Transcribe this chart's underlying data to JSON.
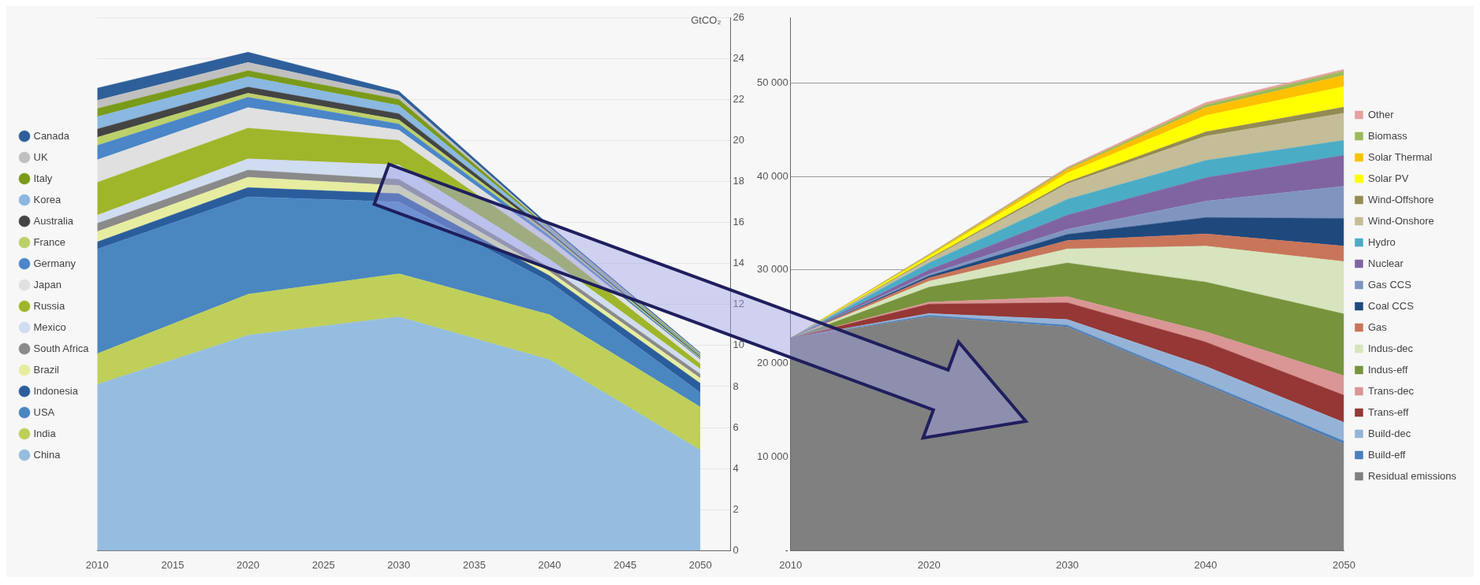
{
  "chart_data": [
    {
      "type": "area",
      "stacked": true,
      "x": [
        2010,
        2020,
        2030,
        2040,
        2050
      ],
      "xlim": [
        2010,
        2052
      ],
      "xticks": [
        2010,
        2015,
        2020,
        2025,
        2030,
        2035,
        2040,
        2045,
        2050
      ],
      "y2lim": [
        0,
        26
      ],
      "y2ticks": [
        0,
        2,
        4,
        6,
        8,
        10,
        12,
        14,
        16,
        18,
        20,
        22,
        24,
        26
      ],
      "y2label": "GtCO₂",
      "grid": "y",
      "legend": "left",
      "series": [
        {
          "name": "China",
          "color": "#95bde0",
          "axis": "y2",
          "values": [
            8.1,
            10.5,
            11.4,
            9.3,
            4.9
          ]
        },
        {
          "name": "India",
          "color": "#bfcf5a",
          "axis": "y2",
          "values": [
            1.5,
            2.0,
            2.1,
            2.2,
            2.1
          ]
        },
        {
          "name": "USA",
          "color": "#4a86c0",
          "axis": "y2",
          "values": [
            5.1,
            4.75,
            3.5,
            1.6,
            0.7
          ]
        },
        {
          "name": "Indonesia",
          "color": "#2b5d9c",
          "axis": "y2",
          "values": [
            0.35,
            0.45,
            0.4,
            0.3,
            0.45
          ]
        },
        {
          "name": "Brazil",
          "color": "#e6eda0",
          "axis": "y2",
          "values": [
            0.5,
            0.5,
            0.4,
            0.2,
            0.25
          ]
        },
        {
          "name": "South Africa",
          "color": "#8a8a8a",
          "axis": "y2",
          "values": [
            0.4,
            0.35,
            0.3,
            0.2,
            0.2
          ]
        },
        {
          "name": "Mexico",
          "color": "#d0dcf0",
          "axis": "y2",
          "values": [
            0.4,
            0.55,
            0.7,
            0.4,
            0.25
          ]
        },
        {
          "name": "Russia",
          "color": "#9fb62a",
          "axis": "y2",
          "values": [
            1.6,
            1.5,
            1.2,
            0.7,
            0.25
          ]
        },
        {
          "name": "Japan",
          "color": "#e0e0e0",
          "axis": "y2",
          "values": [
            1.1,
            1.0,
            0.5,
            0.3,
            0.2
          ]
        },
        {
          "name": "Germany",
          "color": "#4a86c8",
          "axis": "y2",
          "values": [
            0.7,
            0.5,
            0.3,
            0.15,
            0.05
          ]
        },
        {
          "name": "France",
          "color": "#bcd06a",
          "axis": "y2",
          "values": [
            0.4,
            0.2,
            0.2,
            0.1,
            0.05
          ]
        },
        {
          "name": "Australia",
          "color": "#444444",
          "axis": "y2",
          "values": [
            0.4,
            0.3,
            0.3,
            0.1,
            0.05
          ]
        },
        {
          "name": "Korea",
          "color": "#8ab8e0",
          "axis": "y2",
          "values": [
            0.6,
            0.5,
            0.4,
            0.1,
            0.05
          ]
        },
        {
          "name": "Italy",
          "color": "#7a9a1a",
          "axis": "y2",
          "values": [
            0.4,
            0.3,
            0.3,
            0.05,
            0.05
          ]
        },
        {
          "name": "UK",
          "color": "#c0c0c0",
          "axis": "y2",
          "values": [
            0.4,
            0.4,
            0.2,
            0.05,
            0.05
          ]
        },
        {
          "name": "Canada",
          "color": "#2f5f9a",
          "axis": "y2",
          "values": [
            0.6,
            0.5,
            0.2,
            0.1,
            0.05
          ]
        }
      ]
    },
    {
      "type": "area",
      "stacked": true,
      "x": [
        2010,
        2020,
        2030,
        2040,
        2050
      ],
      "xlim": [
        2010,
        2050
      ],
      "xticks": [
        2010,
        2020,
        2030,
        2040,
        2050
      ],
      "ylim": [
        0,
        57000
      ],
      "yticks": [
        {
          "value": 0,
          "label": "-"
        },
        {
          "value": 10000,
          "label": "10 000"
        },
        {
          "value": 20000,
          "label": "20 000"
        },
        {
          "value": 30000,
          "label": "30 000"
        },
        {
          "value": 40000,
          "label": "40 000"
        },
        {
          "value": 50000,
          "label": "50 000"
        }
      ],
      "grid": "y",
      "legend": "right",
      "series": [
        {
          "name": "Residual emissions",
          "color": "#808080",
          "values": [
            22700,
            25000,
            23900,
            17700,
            11400
          ]
        },
        {
          "name": "Build-eff",
          "color": "#4a7ebb",
          "values": [
            0,
            150,
            200,
            200,
            300
          ]
        },
        {
          "name": "Build-dec",
          "color": "#95b3d7",
          "values": [
            0,
            200,
            600,
            1800,
            2000
          ]
        },
        {
          "name": "Trans-eff",
          "color": "#953735",
          "values": [
            0,
            1000,
            1800,
            2600,
            2900
          ]
        },
        {
          "name": "Trans-dec",
          "color": "#d99694",
          "values": [
            0,
            200,
            650,
            1100,
            2100
          ]
        },
        {
          "name": "Indus-eff",
          "color": "#77933c",
          "values": [
            0,
            1600,
            3600,
            5300,
            6600
          ]
        },
        {
          "name": "Indus-dec",
          "color": "#d7e4bd",
          "values": [
            0,
            650,
            1500,
            3850,
            5600
          ]
        },
        {
          "name": "Gas",
          "color": "#c8755a",
          "values": [
            0,
            350,
            900,
            1300,
            1650
          ]
        },
        {
          "name": "Coal CCS",
          "color": "#1f497d",
          "values": [
            0,
            200,
            650,
            1750,
            2950
          ]
        },
        {
          "name": "Gas CCS",
          "color": "#7f95c0",
          "values": [
            0,
            200,
            550,
            1750,
            3450
          ]
        },
        {
          "name": "Nuclear",
          "color": "#8064a2",
          "values": [
            0,
            450,
            1500,
            2500,
            3300
          ]
        },
        {
          "name": "Hydro",
          "color": "#4bacc6",
          "values": [
            0,
            750,
            1700,
            1850,
            1600
          ]
        },
        {
          "name": "Wind-Onshore",
          "color": "#c4bd97",
          "values": [
            0,
            350,
            1650,
            2600,
            2900
          ]
        },
        {
          "name": "Wind-Offshore",
          "color": "#948a54",
          "values": [
            0,
            100,
            200,
            450,
            650
          ]
        },
        {
          "name": "Solar PV",
          "color": "#ffff00",
          "values": [
            0,
            250,
            950,
            1750,
            2200
          ]
        },
        {
          "name": "Solar Thermal",
          "color": "#ffc000",
          "values": [
            0,
            100,
            350,
            850,
            1200
          ]
        },
        {
          "name": "Biomass",
          "color": "#9bbb59",
          "values": [
            0,
            100,
            150,
            300,
            450
          ]
        },
        {
          "name": "Other",
          "color": "#e6a0a0",
          "values": [
            0,
            50,
            150,
            250,
            200
          ]
        }
      ]
    }
  ]
}
